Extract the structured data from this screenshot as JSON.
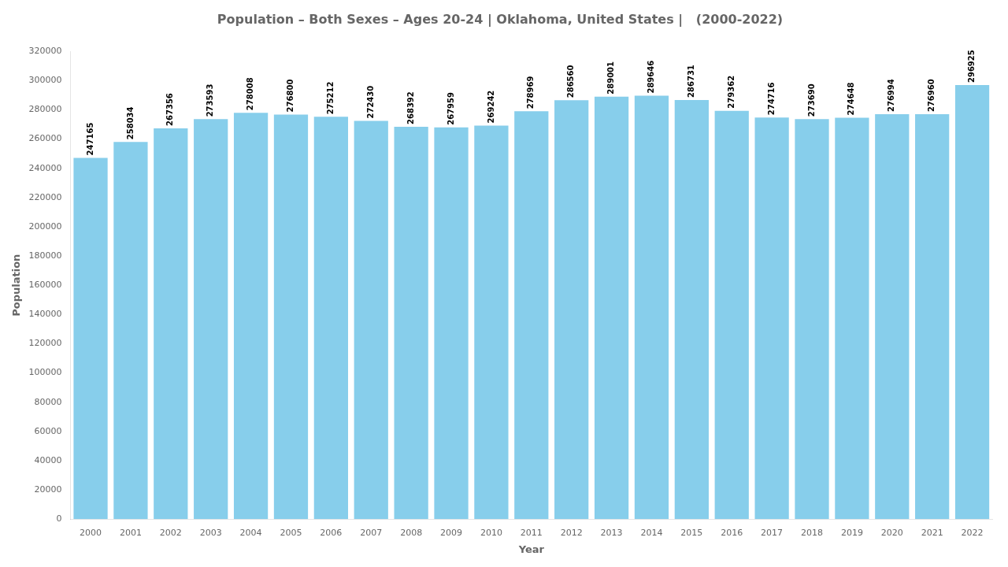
{
  "chart_data": {
    "type": "bar",
    "title": "Population – Both Sexes – Ages 20-24 | Oklahoma, United States |   (2000-2022)",
    "xlabel": "Year",
    "ylabel": "Population",
    "categories": [
      "2000",
      "2001",
      "2002",
      "2003",
      "2004",
      "2005",
      "2006",
      "2007",
      "2008",
      "2009",
      "2010",
      "2011",
      "2012",
      "2013",
      "2014",
      "2015",
      "2016",
      "2017",
      "2018",
      "2019",
      "2020",
      "2021",
      "2022"
    ],
    "values": [
      247165,
      258034,
      267356,
      273593,
      278008,
      276800,
      275212,
      272430,
      268392,
      267959,
      269242,
      278969,
      286560,
      289001,
      289646,
      286731,
      279362,
      274716,
      273690,
      274648,
      276994,
      276960,
      296925
    ],
    "color": "#87CEEB",
    "ylim": [
      0,
      320000
    ],
    "yticks": [
      0,
      20000,
      40000,
      60000,
      80000,
      100000,
      120000,
      140000,
      160000,
      180000,
      200000,
      220000,
      240000,
      260000,
      280000,
      300000,
      320000
    ],
    "grid": false,
    "data_labels": true
  }
}
